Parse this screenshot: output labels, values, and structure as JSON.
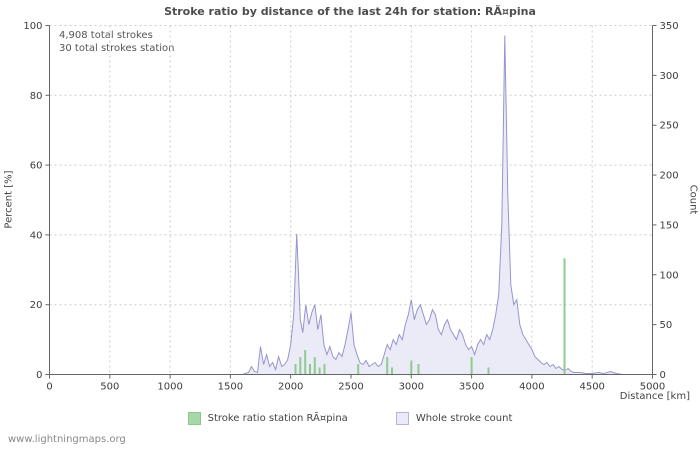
{
  "page": {
    "title": "Stroke ratio by distance of the last 24h for station: RÃ¤pina",
    "annotation_line1": "4,908 total strokes",
    "annotation_line2": "30 total strokes station",
    "footer": "www.lightningmaps.org"
  },
  "legend": [
    {
      "label": "Stroke ratio station RÃ¤pina",
      "color": "#a7d7a7",
      "border": "#8cc98c"
    },
    {
      "label": "Whole stroke count",
      "color": "#eaeaf8",
      "border": "#b3b3dc"
    }
  ],
  "chart_data": {
    "type": "line+bar",
    "title": "Stroke ratio by distance of the last 24h for station: RÃ¤pina",
    "xlabel": "Distance  [km]",
    "ylabel_left": "Percent  [%]",
    "ylabel_right": "Count",
    "annotations": [
      "4,908 total strokes",
      "30 total strokes station"
    ],
    "total_strokes": 4908,
    "total_strokes_station": 30,
    "xlim": [
      0,
      5000
    ],
    "left_ylim": [
      0,
      100
    ],
    "right_ylim": [
      0,
      350
    ],
    "x_ticks": [
      0,
      500,
      1000,
      1500,
      2000,
      2500,
      3000,
      3500,
      4000,
      4500,
      5000
    ],
    "left_ticks": [
      0,
      20,
      40,
      60,
      80,
      100
    ],
    "right_ticks": [
      0,
      50,
      100,
      150,
      200,
      250,
      300,
      350
    ],
    "grid": true,
    "legend_position": "bottom",
    "series": [
      {
        "name": "Whole stroke count",
        "type": "area",
        "axis": "right",
        "color": "#9595ce",
        "fill": "#ebebf8",
        "x": [
          0,
          1600,
          1650,
          1675,
          1700,
          1725,
          1750,
          1775,
          1800,
          1825,
          1850,
          1875,
          1900,
          1925,
          1950,
          1975,
          2000,
          2025,
          2050,
          2065,
          2080,
          2100,
          2125,
          2150,
          2175,
          2200,
          2225,
          2250,
          2275,
          2300,
          2325,
          2350,
          2375,
          2400,
          2425,
          2450,
          2475,
          2500,
          2525,
          2550,
          2575,
          2600,
          2625,
          2650,
          2675,
          2700,
          2725,
          2750,
          2775,
          2800,
          2825,
          2850,
          2875,
          2900,
          2925,
          2950,
          2975,
          3000,
          3025,
          3050,
          3075,
          3100,
          3125,
          3150,
          3175,
          3200,
          3225,
          3250,
          3275,
          3300,
          3325,
          3350,
          3375,
          3400,
          3425,
          3450,
          3475,
          3500,
          3525,
          3550,
          3575,
          3600,
          3625,
          3650,
          3675,
          3700,
          3725,
          3750,
          3775,
          3800,
          3825,
          3850,
          3875,
          3900,
          3925,
          3950,
          3975,
          4000,
          4025,
          4050,
          4075,
          4100,
          4125,
          4150,
          4175,
          4200,
          4225,
          4250,
          4275,
          4300,
          4325,
          4350,
          4400,
          4450,
          4500,
          4550,
          4600,
          4650,
          4700,
          4750,
          4800,
          5000
        ],
        "values": [
          0,
          0,
          2,
          8,
          3,
          2,
          28,
          10,
          20,
          8,
          12,
          5,
          18,
          8,
          10,
          15,
          30,
          60,
          141,
          100,
          55,
          42,
          70,
          50,
          62,
          70,
          45,
          60,
          30,
          20,
          28,
          18,
          15,
          22,
          18,
          30,
          45,
          62,
          30,
          20,
          12,
          10,
          14,
          8,
          10,
          12,
          8,
          10,
          20,
          30,
          25,
          35,
          30,
          40,
          35,
          50,
          60,
          75,
          55,
          65,
          70,
          60,
          50,
          55,
          65,
          60,
          45,
          40,
          50,
          55,
          45,
          40,
          35,
          45,
          40,
          30,
          25,
          28,
          20,
          30,
          35,
          30,
          40,
          35,
          45,
          60,
          80,
          150,
          340,
          180,
          90,
          70,
          75,
          50,
          40,
          35,
          30,
          25,
          18,
          15,
          12,
          10,
          12,
          8,
          10,
          6,
          8,
          5,
          4,
          6,
          3,
          2,
          2,
          1,
          1,
          2,
          1,
          3,
          1,
          0,
          0,
          0
        ]
      },
      {
        "name": "Stroke ratio station RÃ¤pina",
        "type": "bar",
        "axis": "left",
        "color": "#8fcb8f",
        "x": [
          2040,
          2080,
          2120,
          2160,
          2200,
          2240,
          2280,
          2560,
          2800,
          2840,
          3000,
          3060,
          3500,
          3640,
          4270
        ],
        "values": [
          3,
          5,
          7,
          3,
          5,
          2,
          3,
          3,
          5,
          2,
          4,
          3,
          5,
          2,
          33.3
        ]
      }
    ]
  }
}
